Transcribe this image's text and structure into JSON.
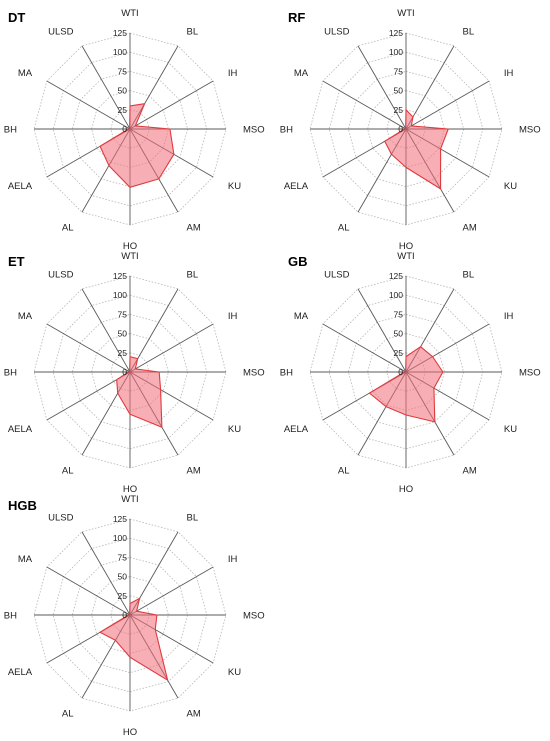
{
  "chart_data": [
    {
      "type": "radar",
      "title": "DT",
      "axes": [
        "WTI",
        "BL",
        "IH",
        "MSO",
        "KU",
        "AM",
        "HO",
        "AL",
        "AELA",
        "BH",
        "MA",
        "ULSD"
      ],
      "ticks": [
        "0",
        "25",
        "50",
        "75",
        "100",
        "125"
      ],
      "rlim": [
        0,
        125
      ],
      "values": [
        30,
        38,
        8,
        52,
        66,
        75,
        76,
        55,
        45,
        2,
        1,
        1
      ]
    },
    {
      "type": "radar",
      "title": "RF",
      "axes": [
        "WTI",
        "BL",
        "IH",
        "MSO",
        "KU",
        "AM",
        "HO",
        "AL",
        "AELA",
        "BH",
        "MA",
        "ULSD"
      ],
      "ticks": [
        "0",
        "25",
        "50",
        "75",
        "100",
        "125"
      ],
      "rlim": [
        0,
        125
      ],
      "values": [
        25,
        18,
        8,
        55,
        52,
        90,
        50,
        38,
        32,
        2,
        1,
        1
      ]
    },
    {
      "type": "radar",
      "title": "ET",
      "axes": [
        "WTI",
        "BL",
        "IH",
        "MSO",
        "KU",
        "AM",
        "HO",
        "AL",
        "AELA",
        "BH",
        "MA",
        "ULSD"
      ],
      "ticks": [
        "0",
        "25",
        "50",
        "75",
        "100",
        "125"
      ],
      "rlim": [
        0,
        125
      ],
      "values": [
        20,
        20,
        8,
        38,
        46,
        83,
        55,
        32,
        20,
        2,
        1,
        1
      ]
    },
    {
      "type": "radar",
      "title": "GB",
      "axes": [
        "WTI",
        "BL",
        "IH",
        "MSO",
        "KU",
        "AM",
        "HO",
        "AL",
        "AELA",
        "BH",
        "MA",
        "ULSD"
      ],
      "ticks": [
        "0",
        "25",
        "50",
        "75",
        "100",
        "125"
      ],
      "rlim": [
        0,
        125
      ],
      "values": [
        20,
        38,
        40,
        48,
        42,
        75,
        56,
        52,
        55,
        2,
        1,
        1
      ]
    },
    {
      "type": "radar",
      "title": "HGB",
      "axes": [
        "WTI",
        "BL",
        "IH",
        "MSO",
        "KU",
        "AM",
        "HO",
        "AL",
        "AELA",
        "BH",
        "MA",
        "ULSD"
      ],
      "ticks": [
        "0",
        "25",
        "50",
        "75",
        "100",
        "125"
      ],
      "rlim": [
        0,
        125
      ],
      "values": [
        15,
        25,
        10,
        35,
        38,
        98,
        55,
        38,
        45,
        2,
        1,
        1
      ]
    }
  ]
}
